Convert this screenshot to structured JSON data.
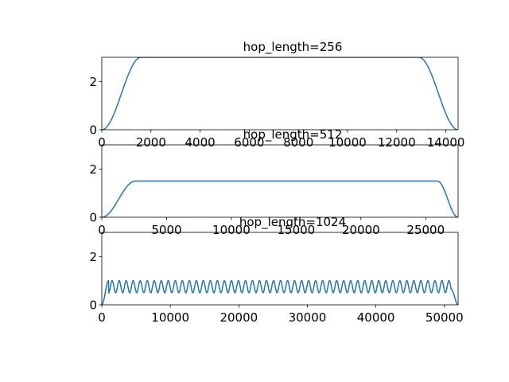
{
  "figure": {
    "background": "#ffffff",
    "line_color": "#1f77b4"
  },
  "chart_data": [
    {
      "type": "line",
      "title": "hop_length=256",
      "xlim": [
        0,
        14500
      ],
      "ylim": [
        0,
        3
      ],
      "xticks": [
        0,
        2000,
        4000,
        6000,
        8000,
        10000,
        12000,
        14000
      ],
      "yticks": [
        0,
        2
      ],
      "curve": {
        "shape": "ramp-plateau",
        "x_start": 0,
        "x_end": 14500,
        "plateau": 3.0,
        "ramp_up_end": 1600,
        "ramp_down_start": 12900
      }
    },
    {
      "type": "line",
      "title": "hop_length=512",
      "xlim": [
        0,
        27500
      ],
      "ylim": [
        0,
        3
      ],
      "xticks": [
        0,
        5000,
        10000,
        15000,
        20000,
        25000
      ],
      "yticks": [
        0,
        2
      ],
      "curve": {
        "shape": "ramp-plateau",
        "x_start": 0,
        "x_end": 27500,
        "plateau": 1.5,
        "ramp_up_end": 2600,
        "ramp_down_start": 25900
      }
    },
    {
      "type": "line",
      "title": "hop_length=1024",
      "xlim": [
        0,
        52000
      ],
      "ylim": [
        0,
        3
      ],
      "xticks": [
        0,
        10000,
        20000,
        30000,
        40000,
        50000
      ],
      "yticks": [
        0,
        2
      ],
      "curve": {
        "shape": "ripple",
        "x_start": 0,
        "x_end": 52000,
        "min": 0.5,
        "max": 1.0,
        "period": 1024,
        "ramp_up_end": 1000,
        "ramp_down_start": 51000
      }
    }
  ]
}
